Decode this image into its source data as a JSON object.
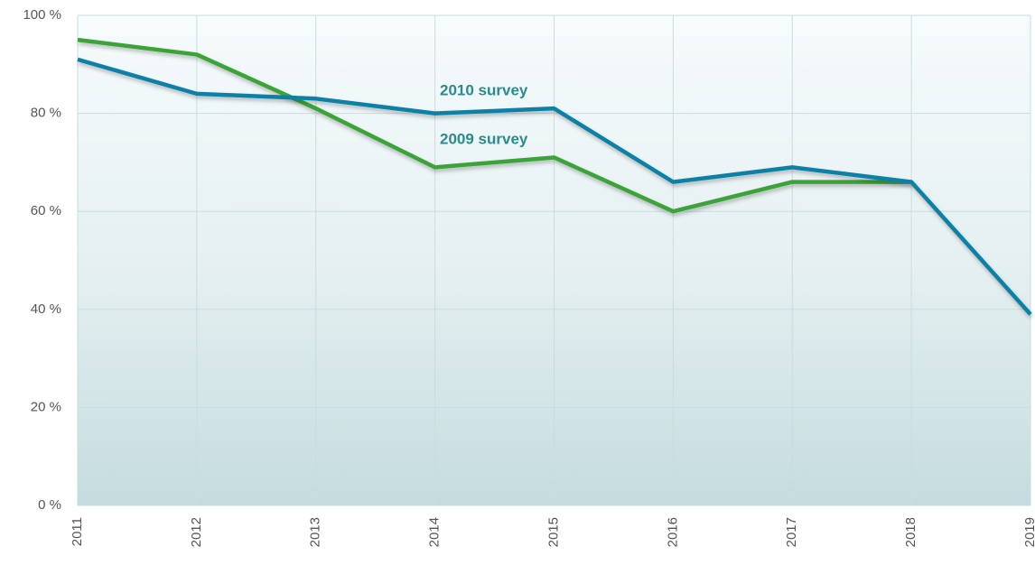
{
  "chart_data": {
    "type": "line",
    "categories": [
      "2011",
      "2012",
      "2013",
      "2014",
      "2015",
      "2016",
      "2017",
      "2018",
      "2019"
    ],
    "series": [
      {
        "name": "2009 survey",
        "color": "#3aa338",
        "values": [
          95,
          92,
          81,
          69,
          71,
          60,
          66,
          66,
          null
        ]
      },
      {
        "name": "2010 survey",
        "color": "#0f80a6",
        "values": [
          91,
          84,
          83,
          80,
          81,
          66,
          69,
          66,
          39
        ]
      }
    ],
    "ylim": [
      0,
      100
    ],
    "yticks": [
      {
        "value": 0,
        "label": "0 %"
      },
      {
        "value": 20,
        "label": "20 %"
      },
      {
        "value": 40,
        "label": "40 %"
      },
      {
        "value": 60,
        "label": "60 %"
      },
      {
        "value": 80,
        "label": "80 %"
      },
      {
        "value": 100,
        "label": "100 %"
      }
    ],
    "grid": true
  }
}
